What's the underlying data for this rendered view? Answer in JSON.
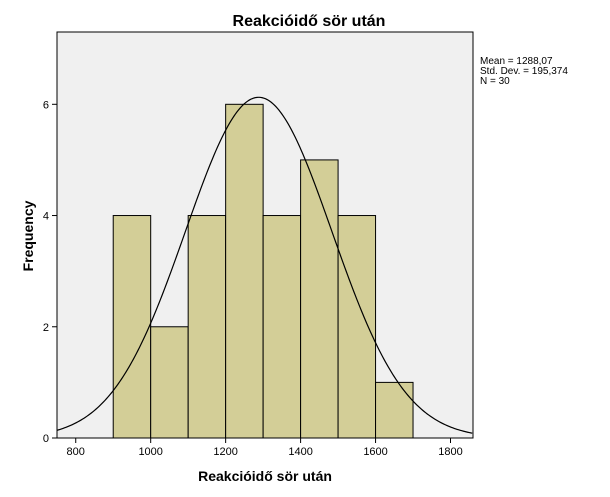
{
  "chart_data": {
    "type": "bar",
    "title": "Reakcióidő sör után",
    "xlabel": "Reakcióidő sör után",
    "ylabel": "Frequency",
    "xlim": [
      750,
      1860
    ],
    "ylim": [
      0,
      7.3
    ],
    "x_ticks": [
      {
        "value": 800,
        "label": "800"
      },
      {
        "value": 1000,
        "label": "1000"
      },
      {
        "value": 1200,
        "label": "1200"
      },
      {
        "value": 1400,
        "label": "1400"
      },
      {
        "value": 1600,
        "label": "1600"
      },
      {
        "value": 1800,
        "label": "1800"
      }
    ],
    "y_ticks": [
      {
        "value": 0,
        "label": "0"
      },
      {
        "value": 2,
        "label": "2"
      },
      {
        "value": 4,
        "label": "4"
      },
      {
        "value": 6,
        "label": "6"
      }
    ],
    "bins": [
      {
        "start": 900,
        "end": 1000,
        "count": 4
      },
      {
        "start": 1000,
        "end": 1100,
        "count": 2
      },
      {
        "start": 1100,
        "end": 1200,
        "count": 4
      },
      {
        "start": 1200,
        "end": 1300,
        "count": 6
      },
      {
        "start": 1300,
        "end": 1400,
        "count": 4
      },
      {
        "start": 1400,
        "end": 1500,
        "count": 5
      },
      {
        "start": 1500,
        "end": 1600,
        "count": 4
      },
      {
        "start": 1600,
        "end": 1700,
        "count": 1
      }
    ],
    "normal_curve": {
      "mean": 1288.07,
      "sd": 195.374,
      "n": 30,
      "bin_width": 100
    },
    "stats_lines": [
      "Mean = 1288,07",
      "Std. Dev. = 195,374",
      "N = 30"
    ],
    "colors": {
      "plot_background": "#f0f0f0",
      "bar_fill": "#d3ce97",
      "bar_stroke": "#000000",
      "curve": "#000000"
    },
    "legend_position": "top-right",
    "grid": false
  }
}
